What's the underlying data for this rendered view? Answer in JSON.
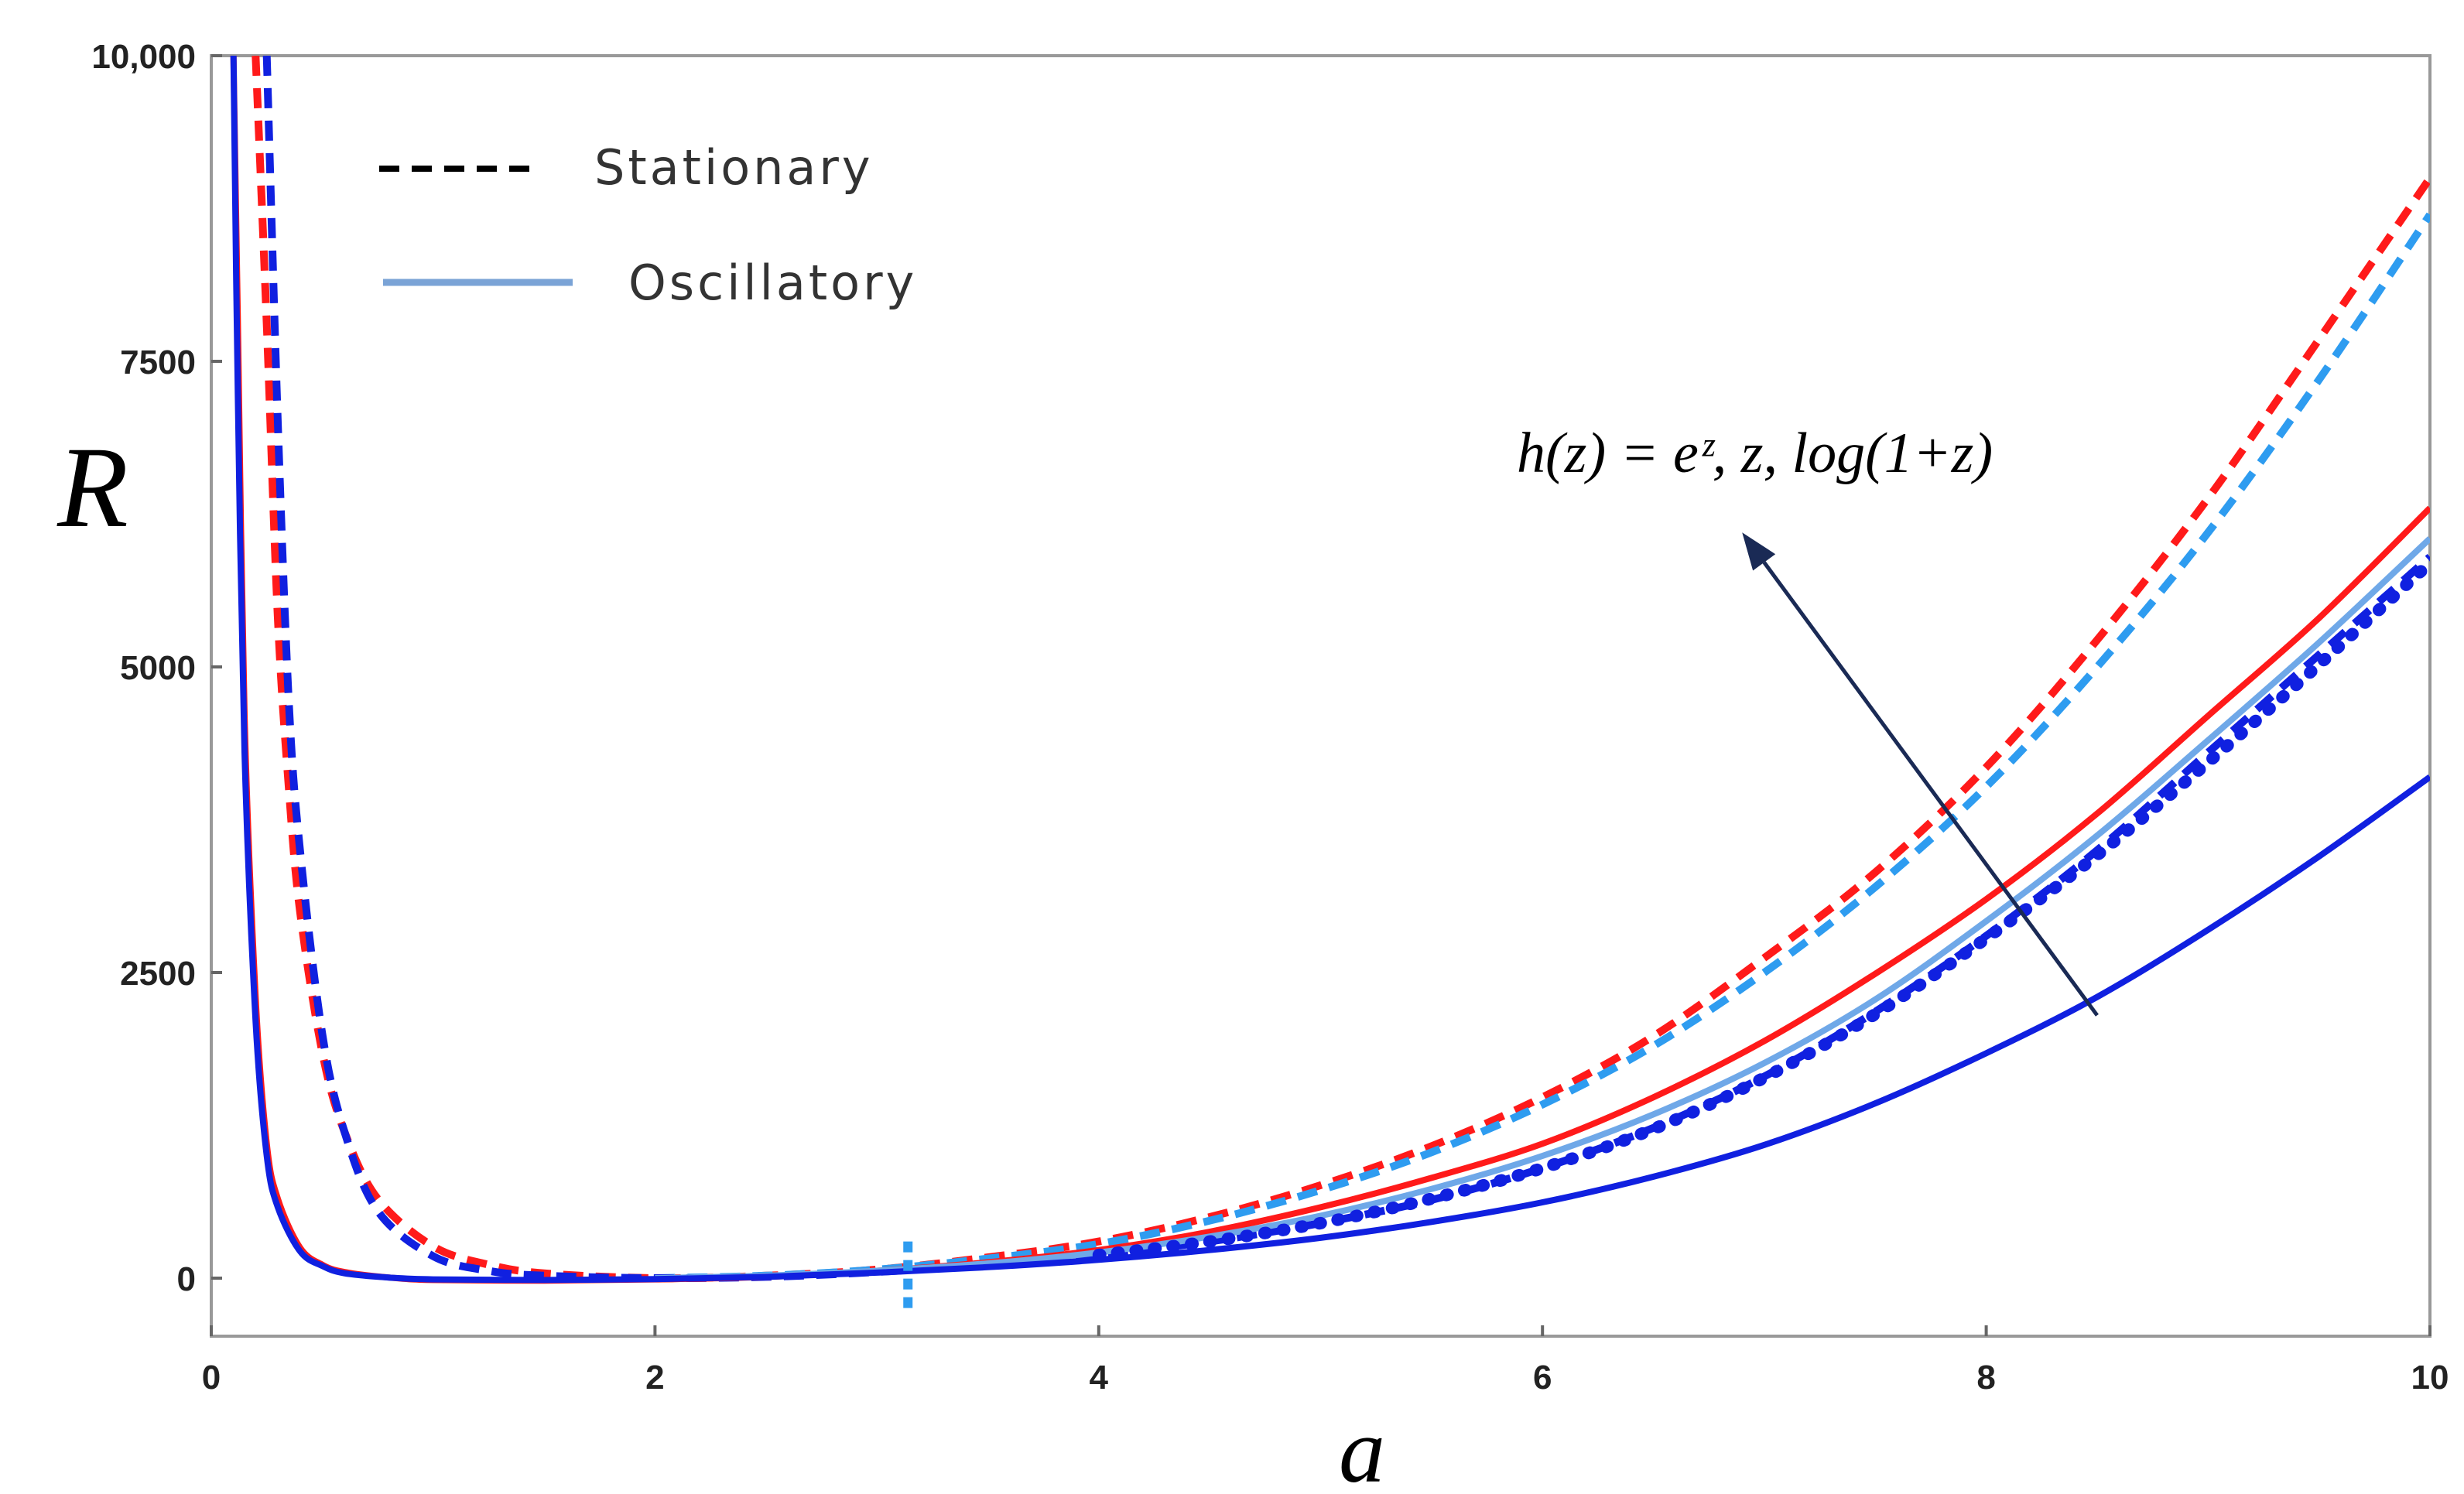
{
  "chart_data": {
    "type": "line",
    "title": "",
    "xlabel": "a",
    "ylabel": "R",
    "xlim": [
      0,
      10
    ],
    "ylim": [
      -500,
      10000
    ],
    "xticks": [
      0,
      2,
      4,
      6,
      8,
      10
    ],
    "xtick_labels": [
      "0",
      "2",
      "4",
      "6",
      "8",
      "10"
    ],
    "yticks": [
      0,
      2500,
      5000,
      7500,
      10000
    ],
    "ytick_labels": [
      "0",
      "2500",
      "5000",
      "7500",
      "10,000"
    ],
    "grid": false,
    "legend_position": "top-left",
    "legend": [
      {
        "label": "Stationary",
        "style": "dashed",
        "color": "#000000"
      },
      {
        "label": "Oscillatory",
        "style": "solid",
        "color": "#7aa3d6"
      }
    ],
    "annotation": {
      "text": "h(z) = e^z, z, log(1+z)",
      "display": "h(z) = eᶻ, z, log(1+z)",
      "arrow_from": [
        8.5,
        2150
      ],
      "arrow_to": [
        6.9,
        6100
      ]
    },
    "series": [
      {
        "name": "Stationary, h(z)=e^z",
        "style": "dashed",
        "color": "#ff1a1a",
        "x": [
          0.2,
          0.25,
          0.3,
          0.35,
          0.4,
          0.5,
          0.6,
          0.75,
          1.0,
          1.25,
          1.5,
          2.0,
          2.5,
          3.0,
          3.5,
          4.0,
          4.5,
          5.0,
          5.5,
          6.0,
          6.5,
          7.0,
          7.5,
          8.0,
          8.5,
          9.0,
          9.5,
          10.0
        ],
        "y": [
          10000,
          7800,
          5400,
          4000,
          3000,
          1850,
          1200,
          650,
          260,
          110,
          40,
          0,
          20,
          70,
          170,
          300,
          500,
          760,
          1080,
          1480,
          1980,
          2620,
          3320,
          4180,
          5220,
          6380,
          7680,
          9000
        ]
      },
      {
        "name": "Stationary, h(z)=z",
        "style": "dashed",
        "color": "#2e9cf0",
        "x": [
          2.0,
          2.5,
          3.0,
          3.5,
          4.0,
          4.5,
          5.0,
          5.5,
          6.0,
          6.5,
          7.0,
          7.5,
          8.0,
          8.5,
          9.0,
          9.5,
          10.0
        ],
        "y": [
          0,
          20,
          70,
          160,
          280,
          470,
          720,
          1030,
          1420,
          1900,
          2500,
          3200,
          4020,
          5000,
          6100,
          7350,
          8700
        ]
      },
      {
        "name": "Stationary, h(z)=log(1+z)",
        "style": "dashed",
        "color": "#1020e0",
        "x": [
          0.25,
          0.3,
          0.35,
          0.4,
          0.5,
          0.6,
          0.75,
          1.0,
          1.25,
          1.5,
          2.0,
          2.5,
          3.0,
          3.5,
          4.0,
          4.5,
          5.0,
          5.5,
          6.0,
          6.5,
          7.0,
          7.5,
          8.0,
          8.5,
          9.0,
          9.5,
          10.0
        ],
        "y": [
          10000,
          7000,
          4700,
          3500,
          2000,
          1200,
          550,
          180,
          60,
          20,
          0,
          10,
          50,
          110,
          190,
          300,
          450,
          640,
          900,
          1230,
          1650,
          2180,
          2800,
          3500,
          4300,
          5100,
          5900
        ]
      },
      {
        "name": "Oscillatory, h(z)=e^z",
        "style": "solid",
        "color": "#ff1a1a",
        "x": [
          0.1,
          0.12,
          0.15,
          0.2,
          0.25,
          0.3,
          0.4,
          0.5,
          0.6,
          0.8,
          1.0,
          1.5,
          2.0,
          2.5,
          3.0,
          3.5,
          4.0,
          4.5,
          5.0,
          5.5,
          6.0,
          6.5,
          7.0,
          7.5,
          8.0,
          8.5,
          9.0,
          9.5,
          10.0
        ],
        "y": [
          10000,
          7800,
          4600,
          2300,
          1100,
          650,
          250,
          110,
          50,
          5,
          -15,
          -20,
          -10,
          10,
          60,
          130,
          230,
          380,
          580,
          820,
          1100,
          1480,
          1940,
          2490,
          3100,
          3800,
          4600,
          5400,
          6300
        ]
      },
      {
        "name": "Oscillatory, h(z)=z",
        "style": "solid",
        "color": "#6fa8e8",
        "x": [
          2.0,
          2.5,
          3.0,
          3.5,
          4.0,
          4.5,
          5.0,
          5.5,
          6.0,
          6.5,
          7.0,
          7.5,
          8.0,
          8.5,
          9.0,
          9.5,
          10.0
        ],
        "y": [
          0,
          20,
          60,
          120,
          210,
          340,
          510,
          730,
          1000,
          1340,
          1760,
          2280,
          2920,
          3620,
          4400,
          5200,
          6050
        ]
      },
      {
        "name": "Oscillatory, h(z)=log(1+z)",
        "style": "solid",
        "color": "#1020e0",
        "x": [
          0.1,
          0.12,
          0.15,
          0.2,
          0.25,
          0.3,
          0.4,
          0.5,
          0.6,
          0.8,
          1.0,
          1.5,
          2.0,
          2.5,
          3.0,
          3.5,
          4.0,
          4.5,
          5.0,
          5.5,
          6.0,
          6.5,
          7.0,
          7.5,
          8.0,
          8.5,
          9.0,
          9.5,
          10.0
        ],
        "y": [
          10000,
          7200,
          4300,
          2100,
          1000,
          580,
          220,
          100,
          40,
          5,
          -10,
          -15,
          -8,
          10,
          45,
          90,
          150,
          230,
          330,
          460,
          620,
          830,
          1090,
          1430,
          1840,
          2300,
          2850,
          3450,
          4100
        ]
      },
      {
        "name": "Oscillatory, h(z)=log(1+z) (thick dotted)",
        "style": "thick-dotted",
        "color": "#1020e0",
        "x": [
          4.0,
          4.5,
          5.0,
          5.5,
          6.0,
          6.5,
          7.0,
          7.5,
          8.0,
          8.5,
          9.0,
          9.5,
          10.0
        ],
        "y": [
          190,
          300,
          450,
          650,
          900,
          1220,
          1640,
          2160,
          2780,
          3460,
          4220,
          5020,
          5850
        ]
      }
    ]
  }
}
